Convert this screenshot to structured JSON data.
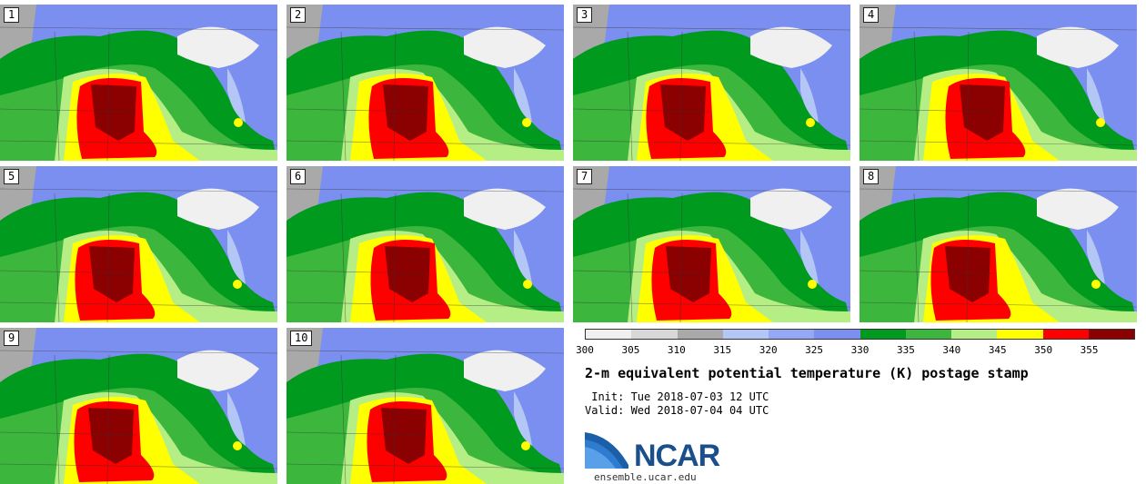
{
  "panels": [
    {
      "label": "1"
    },
    {
      "label": "2"
    },
    {
      "label": "3"
    },
    {
      "label": "4"
    },
    {
      "label": "5"
    },
    {
      "label": "6"
    },
    {
      "label": "7"
    },
    {
      "label": "8"
    },
    {
      "label": "9"
    },
    {
      "label": "10"
    }
  ],
  "colorbar": {
    "colors": [
      "#f0f0f0",
      "#d8d8d8",
      "#a9a9a9",
      "#b4c6f5",
      "#94a8f6",
      "#7b8ff0",
      "#009a1e",
      "#3cb63c",
      "#b6ee86",
      "#ffff00",
      "#ff0000",
      "#8b0000"
    ],
    "ticks": [
      "300",
      "305",
      "310",
      "315",
      "320",
      "325",
      "330",
      "335",
      "340",
      "345",
      "350",
      "355"
    ]
  },
  "title": "2-m equivalent potential temperature (K) postage stamp",
  "init": " Init: Tue 2018-07-03 12 UTC",
  "valid": "Valid: Wed 2018-07-04 04 UTC",
  "logo": {
    "text": "NCAR",
    "url": "ensemble.ucar.edu",
    "color": "#1a4f8c"
  }
}
